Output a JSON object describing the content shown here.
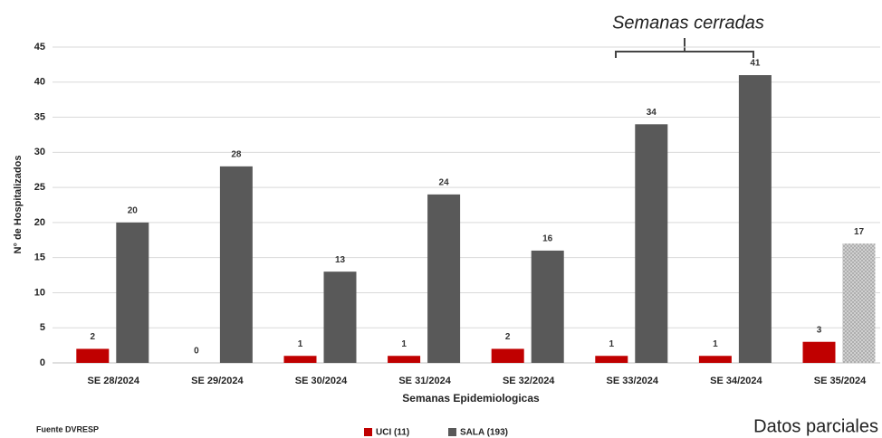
{
  "chart_data": {
    "type": "bar",
    "categories": [
      "SE 28/2024",
      "SE 29/2024",
      "SE 30/2024",
      "SE 31/2024",
      "SE 32/2024",
      "SE 33/2024",
      "SE 34/2024",
      "SE 35/2024"
    ],
    "series": [
      {
        "name": "UCI (11)",
        "color": "#c00000",
        "values": [
          2,
          0,
          1,
          1,
          2,
          1,
          1,
          3
        ]
      },
      {
        "name": "SALA (193)",
        "color": "#595959",
        "values": [
          20,
          28,
          13,
          24,
          16,
          34,
          41,
          17
        ],
        "hatched": [
          false,
          false,
          false,
          false,
          false,
          false,
          false,
          true
        ]
      }
    ],
    "ylim": [
      0,
      45
    ],
    "yticks": [
      0,
      5,
      10,
      15,
      20,
      25,
      30,
      35,
      40,
      45
    ],
    "grid": true,
    "x_label": "Semanas Epidemiologicas",
    "y_label": "N° de Hospitalizados",
    "annotations": {
      "bracket": "Semanas cerradas",
      "source": "Fuente DVRESP",
      "partial": "Datos parciales"
    }
  }
}
